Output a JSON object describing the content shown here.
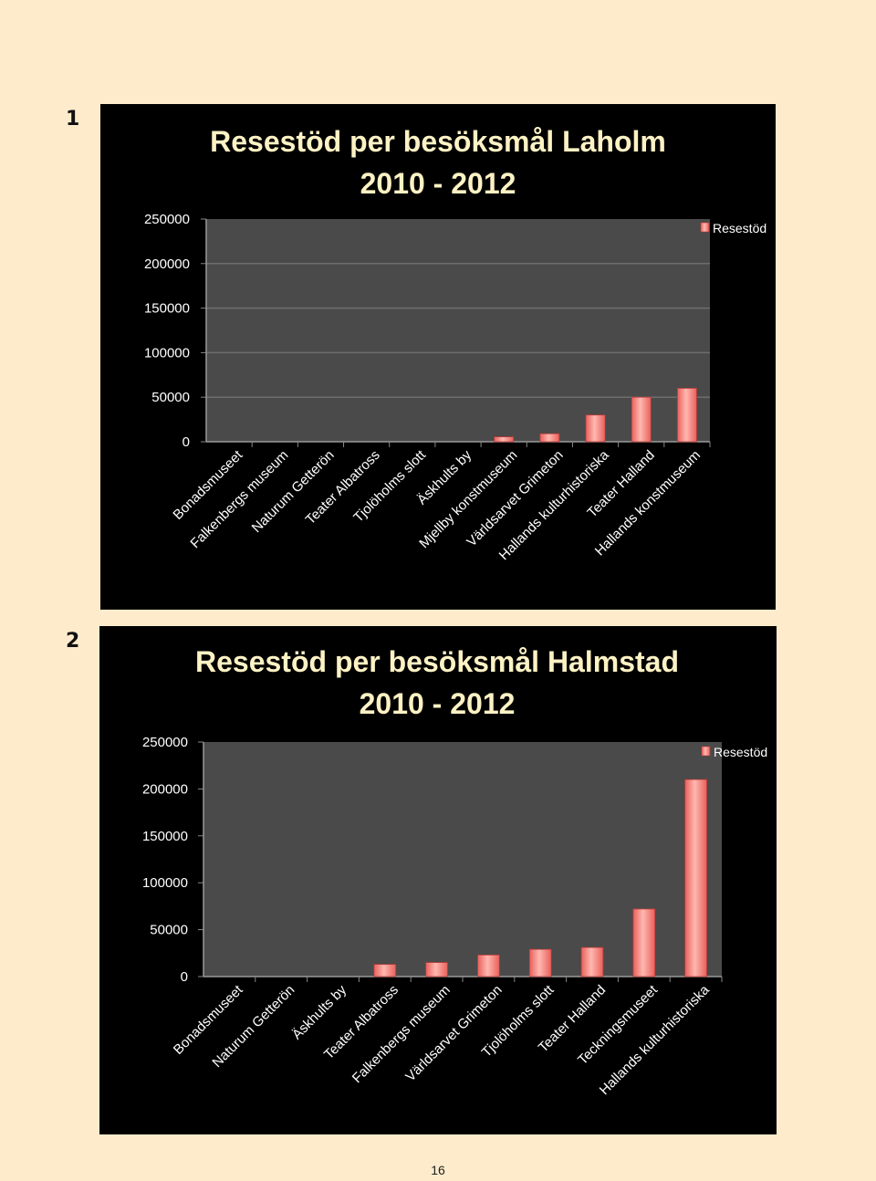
{
  "figures": [
    {
      "number": "1"
    },
    {
      "number": "2"
    }
  ],
  "colors": {
    "page_background": "#fdebcc",
    "panel_background": "#000000",
    "plot_area": "#4a4a4a",
    "gridline": "#6e6e6e",
    "title": "#fdf2c4",
    "axis_text": "#ffffff",
    "bar": "#e8605c",
    "bar_highlight": "#ffb8b0"
  },
  "chart_data": [
    {
      "type": "bar",
      "title": "Resestöd per besöksmål Laholm",
      "subtitle": "2010 - 2012",
      "xlabel": "",
      "ylabel": "",
      "ylim": [
        0,
        250000
      ],
      "yticks": [
        "0",
        "50000",
        "100000",
        "150000",
        "200000",
        "250000"
      ],
      "grid": true,
      "legend_position": "top-right",
      "categories": [
        "Bonadsmuseet",
        "Falkenbergs museum",
        "Naturum Getterön",
        "Teater Albatross",
        "Tjolöholms slott",
        "Äskhults by",
        "Mjellby konstmuseum",
        "Världsarvet Grimeton",
        "Hallands kulturhistoriska",
        "Teater Halland",
        "Hallands konstmuseum"
      ],
      "series": [
        {
          "name": "Resestöd",
          "values": [
            0,
            0,
            0,
            0,
            0,
            0,
            5500,
            9000,
            30000,
            50000,
            60000
          ]
        }
      ]
    },
    {
      "type": "bar",
      "title": "Resestöd per besöksmål Halmstad",
      "subtitle": "2010 - 2012",
      "xlabel": "",
      "ylabel": "",
      "ylim": [
        0,
        250000
      ],
      "yticks": [
        "0",
        "50000",
        "100000",
        "150000",
        "200000",
        "250000"
      ],
      "grid": false,
      "legend_position": "top-right",
      "categories": [
        "Bonadsmuseet",
        "Naturum Getterön",
        "Äskhults by",
        "Teater Albatross",
        "Falkenbergs museum",
        "Världsarvet Grimeton",
        "Tjolöholms slott",
        "Teater Halland",
        "Teckningsmuseet",
        "Hallands kulturhistoriska"
      ],
      "series": [
        {
          "name": "Resestöd",
          "values": [
            0,
            0,
            0,
            13000,
            15000,
            23000,
            29000,
            31000,
            72000,
            210000
          ]
        }
      ]
    }
  ],
  "footer": {
    "page_number": "16"
  }
}
